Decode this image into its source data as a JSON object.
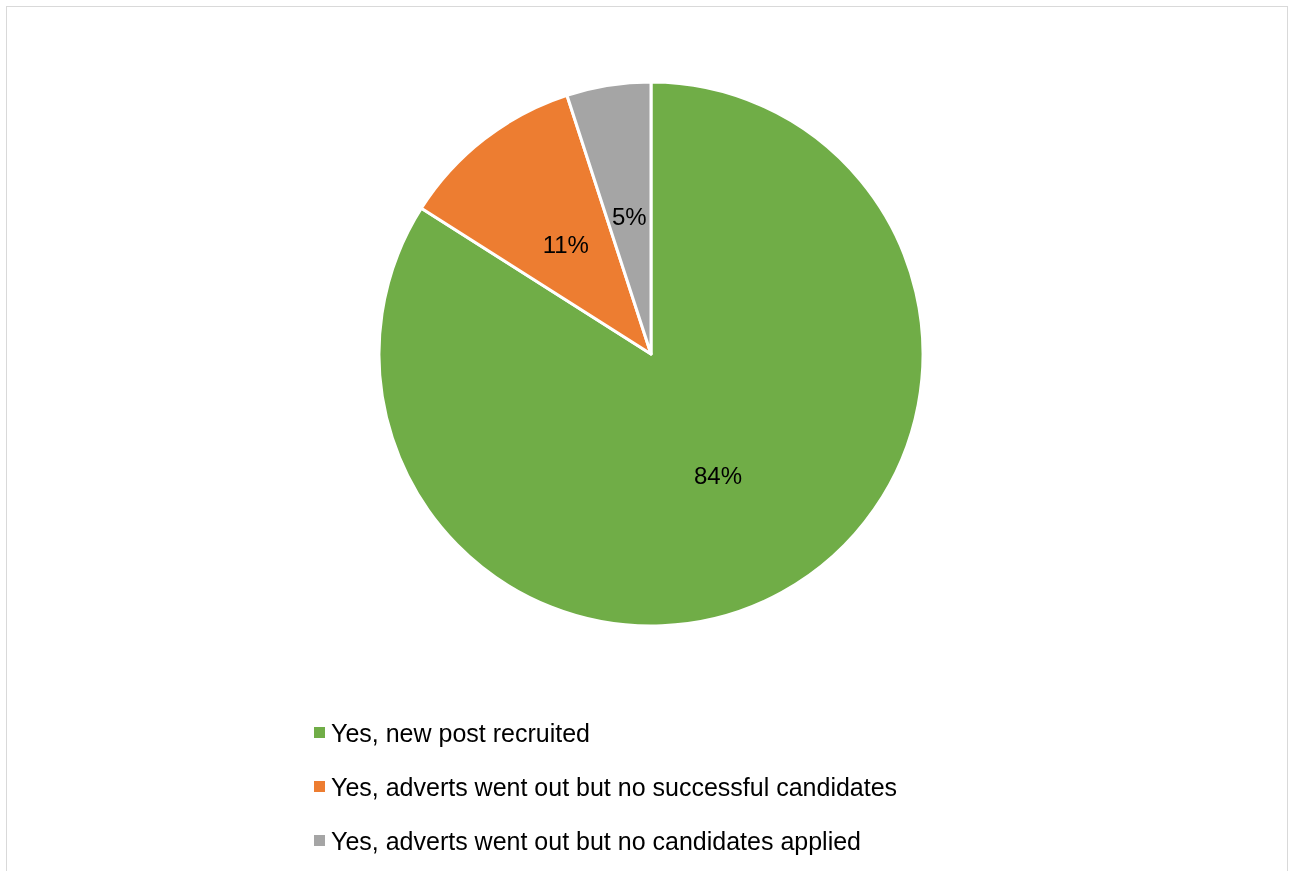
{
  "chart_data": {
    "type": "pie",
    "categories": [
      "Yes, new post recruited",
      "Yes, adverts went out but no successful candidates",
      "Yes, adverts went out but no candidates applied"
    ],
    "values": [
      84,
      11,
      5
    ],
    "colors": [
      "#70ad47",
      "#ed7d31",
      "#a5a5a5"
    ],
    "value_labels": [
      "84%",
      "11%",
      "5%"
    ],
    "legend": "bottom"
  }
}
